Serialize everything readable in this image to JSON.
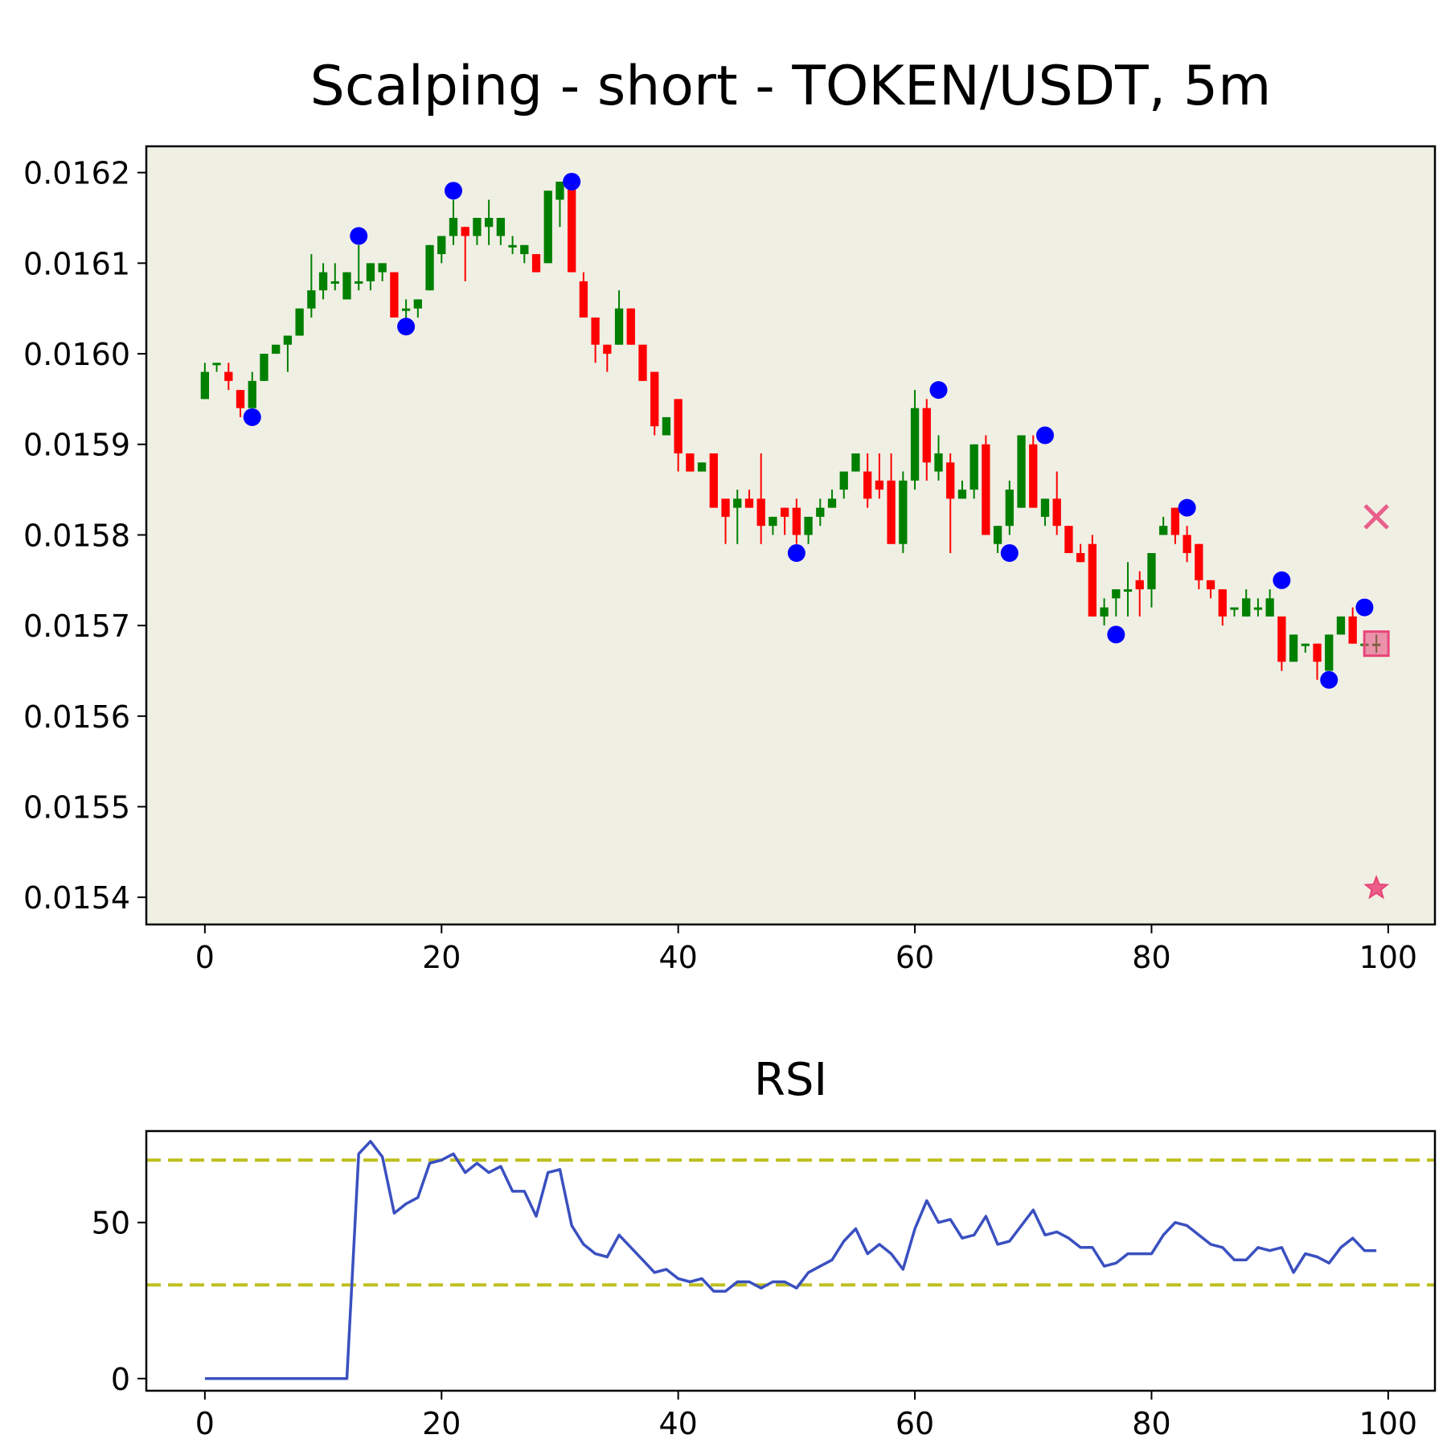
{
  "chart_data": [
    {
      "type": "candlestick",
      "title": "Scalping - short - TOKEN/USDT, 5m",
      "background": "#f0efe4",
      "up_color": "#008000",
      "down_color": "#ff0000",
      "xlim": [
        -4.95,
        103.95
      ],
      "ylim": [
        0.01537,
        0.016229
      ],
      "xticks": [
        0,
        20,
        40,
        60,
        80,
        100
      ],
      "yticks": [
        0.0154,
        0.0155,
        0.0156,
        0.0157,
        0.0158,
        0.0159,
        {
          "value": 0.016,
          "label": "0.0160"
        },
        0.0161,
        0.0162
      ],
      "x": [
        0,
        1,
        2,
        3,
        4,
        5,
        6,
        7,
        8,
        9,
        10,
        11,
        12,
        13,
        14,
        15,
        16,
        17,
        18,
        19,
        20,
        21,
        22,
        23,
        24,
        25,
        26,
        27,
        28,
        29,
        30,
        31,
        32,
        33,
        34,
        35,
        36,
        37,
        38,
        39,
        40,
        41,
        42,
        43,
        44,
        45,
        46,
        47,
        48,
        49,
        50,
        51,
        52,
        53,
        54,
        55,
        56,
        57,
        58,
        59,
        60,
        61,
        62,
        63,
        64,
        65,
        66,
        67,
        68,
        69,
        70,
        71,
        72,
        73,
        74,
        75,
        76,
        77,
        78,
        79,
        80,
        81,
        82,
        83,
        84,
        85,
        86,
        87,
        88,
        89,
        90,
        91,
        92,
        93,
        94,
        95,
        96,
        97,
        98,
        99
      ],
      "open": [
        0.01595,
        0.01599,
        0.01598,
        0.01596,
        0.01594,
        0.01597,
        0.016,
        0.01601,
        0.01602,
        0.01605,
        0.01607,
        0.01608,
        0.01606,
        0.01608,
        0.01608,
        0.01609,
        0.01609,
        0.01605,
        0.01605,
        0.01607,
        0.01611,
        0.01613,
        0.01614,
        0.01613,
        0.01614,
        0.01613,
        0.01612,
        0.01611,
        0.01611,
        0.0161,
        0.01617,
        0.01619,
        0.01608,
        0.01604,
        0.01601,
        0.01601,
        0.01605,
        0.01601,
        0.01598,
        0.01591,
        0.01595,
        0.01589,
        0.01587,
        0.01589,
        0.01584,
        0.01583,
        0.01584,
        0.01584,
        0.01581,
        0.01583,
        0.01583,
        0.0158,
        0.01582,
        0.01583,
        0.01585,
        0.01587,
        0.01587,
        0.01586,
        0.01586,
        0.01579,
        0.01586,
        0.01594,
        0.01587,
        0.01588,
        0.01584,
        0.01585,
        0.0159,
        0.01579,
        0.01581,
        0.01583,
        0.0159,
        0.01582,
        0.01584,
        0.01581,
        0.01578,
        0.01579,
        0.01571,
        0.01573,
        0.01574,
        0.01575,
        0.01574,
        0.0158,
        0.01583,
        0.0158,
        0.01579,
        0.01575,
        0.01574,
        0.01572,
        0.01571,
        0.01572,
        0.01571,
        0.01571,
        0.01566,
        0.01568,
        0.01568,
        0.01565,
        0.01569,
        0.01571,
        0.01568,
        0.01568
      ],
      "high": [
        0.01599,
        0.01599,
        0.01599,
        0.01596,
        0.01598,
        0.016,
        0.01601,
        0.01602,
        0.01605,
        0.01611,
        0.0161,
        0.0161,
        0.01609,
        0.01612,
        0.0161,
        0.0161,
        0.01609,
        0.01606,
        0.01606,
        0.01612,
        0.01613,
        0.01617,
        0.01614,
        0.01615,
        0.01617,
        0.01615,
        0.01613,
        0.01612,
        0.01611,
        0.01618,
        0.01619,
        0.01619,
        0.01609,
        0.01604,
        0.01601,
        0.01607,
        0.01605,
        0.01601,
        0.01598,
        0.01593,
        0.01595,
        0.01589,
        0.01588,
        0.01589,
        0.01584,
        0.01585,
        0.01585,
        0.01589,
        0.01582,
        0.01583,
        0.01584,
        0.01582,
        0.01584,
        0.01585,
        0.01587,
        0.01589,
        0.01589,
        0.01589,
        0.01589,
        0.01587,
        0.01596,
        0.01595,
        0.01591,
        0.01589,
        0.01586,
        0.0159,
        0.01591,
        0.01581,
        0.01586,
        0.01591,
        0.01591,
        0.01584,
        0.01587,
        0.01581,
        0.01579,
        0.0158,
        0.01573,
        0.01574,
        0.01577,
        0.01576,
        0.01578,
        0.01582,
        0.01583,
        0.01581,
        0.01579,
        0.01575,
        0.01574,
        0.01572,
        0.01574,
        0.01573,
        0.01574,
        0.01571,
        0.01569,
        0.01568,
        0.01568,
        0.01569,
        0.01571,
        0.01572,
        0.01568,
        0.01569
      ],
      "low": [
        0.01595,
        0.01598,
        0.01596,
        0.01593,
        0.01593,
        0.01597,
        0.016,
        0.01598,
        0.01602,
        0.01604,
        0.01606,
        0.01607,
        0.01606,
        0.01607,
        0.01607,
        0.01608,
        0.01604,
        0.01603,
        0.01604,
        0.01607,
        0.0161,
        0.01612,
        0.01608,
        0.01612,
        0.01612,
        0.01612,
        0.01611,
        0.0161,
        0.01609,
        0.0161,
        0.01614,
        0.01609,
        0.01604,
        0.01599,
        0.01598,
        0.01601,
        0.01601,
        0.01597,
        0.01591,
        0.01591,
        0.01587,
        0.01587,
        0.01587,
        0.01583,
        0.01579,
        0.01579,
        0.01583,
        0.01579,
        0.0158,
        0.0158,
        0.01579,
        0.01579,
        0.01581,
        0.01583,
        0.01584,
        0.01587,
        0.01583,
        0.01584,
        0.01579,
        0.01578,
        0.01585,
        0.01586,
        0.01586,
        0.01578,
        0.01584,
        0.01584,
        0.0158,
        0.01578,
        0.0158,
        0.01583,
        0.01583,
        0.01581,
        0.0158,
        0.01578,
        0.01577,
        0.01571,
        0.0157,
        0.01571,
        0.01571,
        0.01571,
        0.01572,
        0.0158,
        0.01579,
        0.01577,
        0.01574,
        0.01573,
        0.0157,
        0.01571,
        0.01571,
        0.01571,
        0.01571,
        0.01565,
        0.01566,
        0.01567,
        0.01564,
        0.01565,
        0.01569,
        0.01568,
        0.01567,
        0.01567
      ],
      "close": [
        0.01598,
        0.01599,
        0.01597,
        0.01594,
        0.01597,
        0.016,
        0.01601,
        0.01602,
        0.01605,
        0.01607,
        0.01609,
        0.01608,
        0.01609,
        0.01608,
        0.0161,
        0.0161,
        0.01604,
        0.01605,
        0.01606,
        0.01612,
        0.01613,
        0.01615,
        0.01613,
        0.01615,
        0.01615,
        0.01615,
        0.01612,
        0.01612,
        0.01609,
        0.01618,
        0.01619,
        0.01609,
        0.01604,
        0.01601,
        0.016,
        0.01605,
        0.01601,
        0.01597,
        0.01592,
        0.01593,
        0.01589,
        0.01587,
        0.01588,
        0.01583,
        0.01582,
        0.01584,
        0.01583,
        0.01581,
        0.01582,
        0.01582,
        0.0158,
        0.01582,
        0.01583,
        0.01584,
        0.01587,
        0.01589,
        0.01584,
        0.01585,
        0.01579,
        0.01586,
        0.01594,
        0.01588,
        0.01589,
        0.01584,
        0.01585,
        0.0159,
        0.0158,
        0.01581,
        0.01585,
        0.01591,
        0.01583,
        0.01584,
        0.01581,
        0.01578,
        0.01577,
        0.01571,
        0.01572,
        0.01574,
        0.01574,
        0.01574,
        0.01578,
        0.01581,
        0.0158,
        0.01578,
        0.01575,
        0.01574,
        0.01571,
        0.01572,
        0.01573,
        0.01572,
        0.01573,
        0.01566,
        0.01569,
        0.01568,
        0.01566,
        0.01569,
        0.01571,
        0.01568,
        0.01568,
        0.01568
      ],
      "pivots": {
        "color": "#0000ff",
        "x": [
          4,
          13,
          17,
          21,
          31,
          50,
          62,
          68,
          71,
          77,
          83,
          91,
          95,
          98
        ],
        "y": [
          0.01593,
          0.01613,
          0.01603,
          0.01618,
          0.01619,
          0.01578,
          0.01596,
          0.01578,
          0.01591,
          0.01569,
          0.01583,
          0.01575,
          0.01564,
          0.01572
        ]
      },
      "signals": [
        {
          "marker": "x",
          "x": 99,
          "y": 0.01582,
          "color": "#e8457a"
        },
        {
          "marker": "square",
          "x": 99,
          "y": 0.01568,
          "color": "#e8457a"
        },
        {
          "marker": "star",
          "x": 99,
          "y": 0.01541,
          "color": "#e8457a"
        }
      ]
    },
    {
      "type": "line",
      "title": "RSI",
      "background": "#ffffff",
      "color": "#3a50c0",
      "xlim": [
        -4.95,
        103.95
      ],
      "ylim": [
        -3.9,
        79.3
      ],
      "xticks": [
        0,
        20,
        40,
        60,
        80,
        100
      ],
      "yticks": [
        0,
        50
      ],
      "hlines": [
        70,
        30
      ],
      "hline_color": "#bfbf1f",
      "x": [
        0,
        1,
        2,
        3,
        4,
        5,
        6,
        7,
        8,
        9,
        10,
        11,
        12,
        13,
        14,
        15,
        16,
        17,
        18,
        19,
        20,
        21,
        22,
        23,
        24,
        25,
        26,
        27,
        28,
        29,
        30,
        31,
        32,
        33,
        34,
        35,
        36,
        37,
        38,
        39,
        40,
        41,
        42,
        43,
        44,
        45,
        46,
        47,
        48,
        49,
        50,
        51,
        52,
        53,
        54,
        55,
        56,
        57,
        58,
        59,
        60,
        61,
        62,
        63,
        64,
        65,
        66,
        67,
        68,
        69,
        70,
        71,
        72,
        73,
        74,
        75,
        76,
        77,
        78,
        79,
        80,
        81,
        82,
        83,
        84,
        85,
        86,
        87,
        88,
        89,
        90,
        91,
        92,
        93,
        94,
        95,
        96,
        97,
        98,
        99
      ],
      "values": [
        0,
        0,
        0,
        0,
        0,
        0,
        0,
        0,
        0,
        0,
        0,
        0,
        0,
        72,
        76,
        71,
        53,
        56,
        58,
        69,
        70,
        72,
        66,
        69,
        66,
        68,
        60,
        60,
        52,
        66,
        67,
        49,
        43,
        40,
        39,
        46,
        42,
        38,
        34,
        35,
        32,
        31,
        32,
        28,
        28,
        31,
        31,
        29,
        31,
        31,
        29,
        34,
        36,
        38,
        44,
        48,
        40,
        43,
        40,
        35,
        48,
        57,
        50,
        51,
        45,
        46,
        52,
        43,
        44,
        49,
        54,
        46,
        47,
        45,
        42,
        42,
        36,
        37,
        40,
        40,
        40,
        46,
        50,
        49,
        46,
        43,
        42,
        38,
        38,
        42,
        41,
        42,
        34,
        40,
        39,
        37,
        42,
        45,
        41,
        41
      ]
    }
  ]
}
